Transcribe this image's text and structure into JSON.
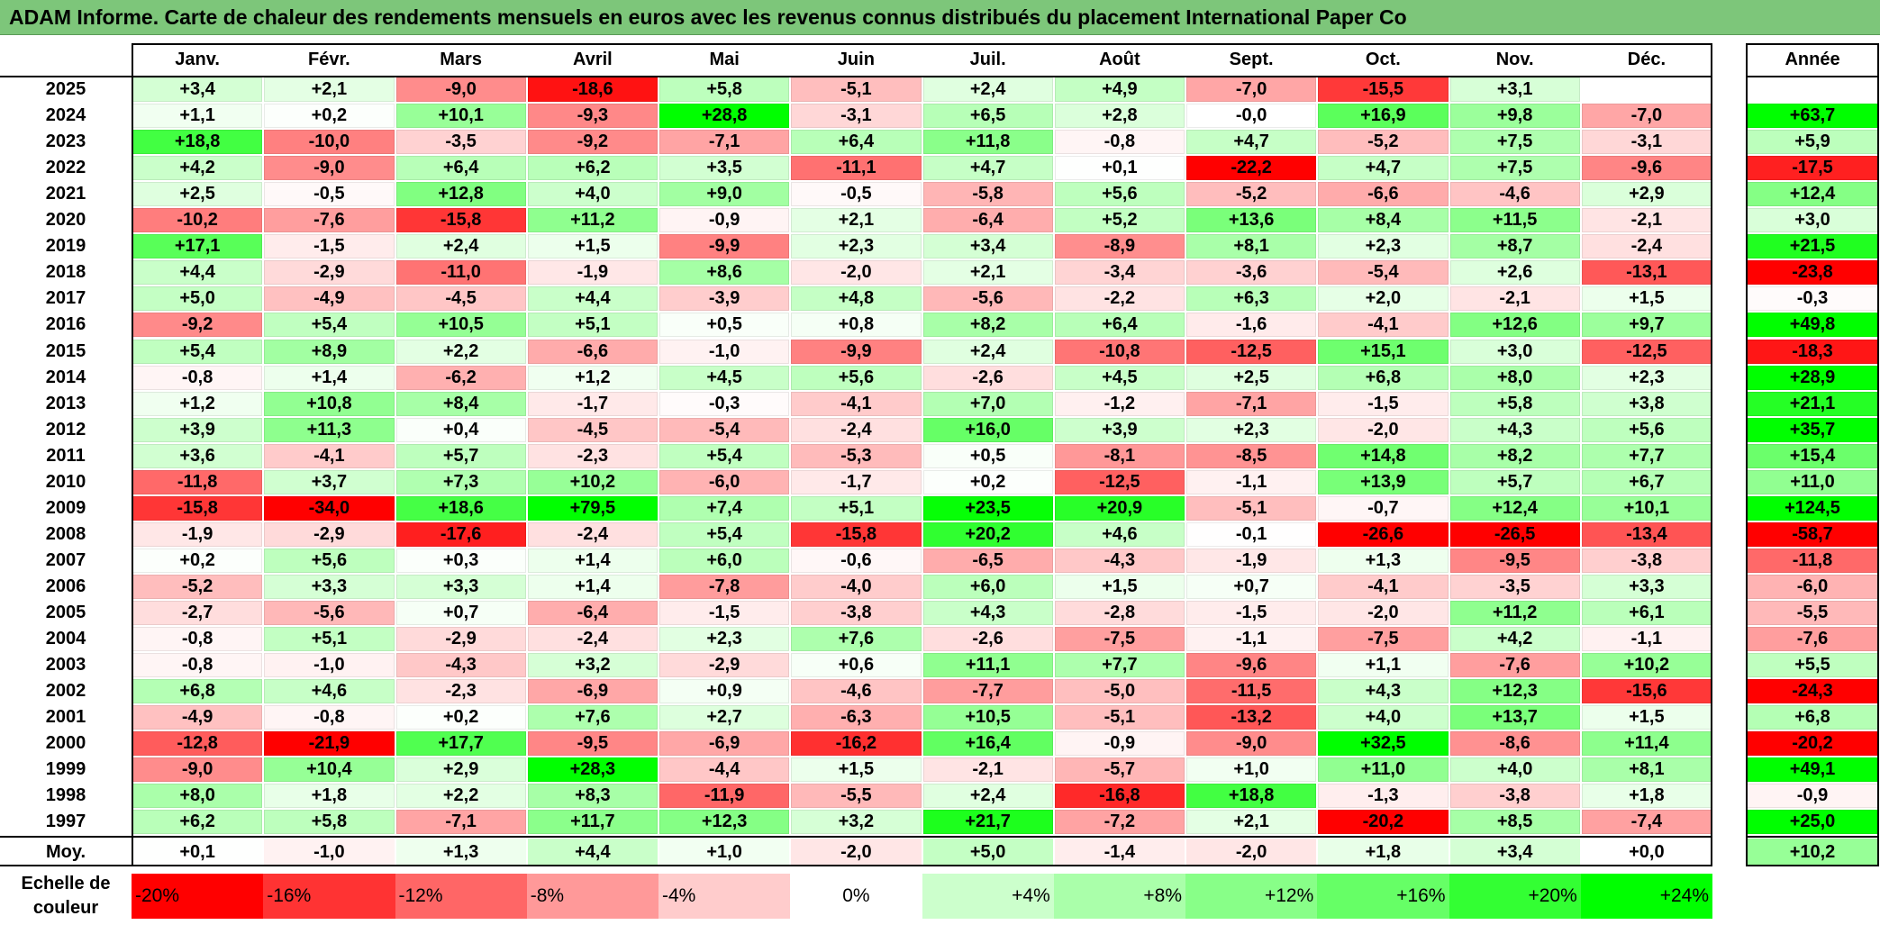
{
  "title": "ADAM Informe. Carte de chaleur des rendements mensuels en euros avec les revenus connus distribués du placement International Paper Co",
  "chart_data": {
    "type": "heatmap",
    "title": "ADAM Informe. Carte de chaleur des rendements mensuels en euros avec les revenus connus distribués du placement International Paper Co",
    "months": [
      "Janv.",
      "Févr.",
      "Mars",
      "Avril",
      "Mai",
      "Juin",
      "Juil.",
      "Août",
      "Sept.",
      "Oct.",
      "Nov.",
      "Déc."
    ],
    "year_header": "Année",
    "rows": [
      {
        "year": "2025",
        "values": [
          "+3,4",
          "+2,1",
          "-9,0",
          "-18,6",
          "+5,8",
          "-5,1",
          "+2,4",
          "+4,9",
          "-7,0",
          "-15,5",
          "+3,1",
          ""
        ],
        "annual": ""
      },
      {
        "year": "2024",
        "values": [
          "+1,1",
          "+0,2",
          "+10,1",
          "-9,3",
          "+28,8",
          "-3,1",
          "+6,5",
          "+2,8",
          "-0,0",
          "+16,9",
          "+9,8",
          "-7,0"
        ],
        "annual": "+63,7"
      },
      {
        "year": "2023",
        "values": [
          "+18,8",
          "-10,0",
          "-3,5",
          "-9,2",
          "-7,1",
          "+6,4",
          "+11,8",
          "-0,8",
          "+4,7",
          "-5,2",
          "+7,5",
          "-3,1"
        ],
        "annual": "+5,9"
      },
      {
        "year": "2022",
        "values": [
          "+4,2",
          "-9,0",
          "+6,4",
          "+6,2",
          "+3,5",
          "-11,1",
          "+4,7",
          "+0,1",
          "-22,2",
          "+4,7",
          "+7,5",
          "-9,6"
        ],
        "annual": "-17,5"
      },
      {
        "year": "2021",
        "values": [
          "+2,5",
          "-0,5",
          "+12,8",
          "+4,0",
          "+9,0",
          "-0,5",
          "-5,8",
          "+5,6",
          "-5,2",
          "-6,6",
          "-4,6",
          "+2,9"
        ],
        "annual": "+12,4"
      },
      {
        "year": "2020",
        "values": [
          "-10,2",
          "-7,6",
          "-15,8",
          "+11,2",
          "-0,9",
          "+2,1",
          "-6,4",
          "+5,2",
          "+13,6",
          "+8,4",
          "+11,5",
          "-2,1"
        ],
        "annual": "+3,0"
      },
      {
        "year": "2019",
        "values": [
          "+17,1",
          "-1,5",
          "+2,4",
          "+1,5",
          "-9,9",
          "+2,3",
          "+3,4",
          "-8,9",
          "+8,1",
          "+2,3",
          "+8,7",
          "-2,4"
        ],
        "annual": "+21,5"
      },
      {
        "year": "2018",
        "values": [
          "+4,4",
          "-2,9",
          "-11,0",
          "-1,9",
          "+8,6",
          "-2,0",
          "+2,1",
          "-3,4",
          "-3,6",
          "-5,4",
          "+2,6",
          "-13,1"
        ],
        "annual": "-23,8"
      },
      {
        "year": "2017",
        "values": [
          "+5,0",
          "-4,9",
          "-4,5",
          "+4,4",
          "-3,9",
          "+4,8",
          "-5,6",
          "-2,2",
          "+6,3",
          "+2,0",
          "-2,1",
          "+1,5"
        ],
        "annual": "-0,3"
      },
      {
        "year": "2016",
        "values": [
          "-9,2",
          "+5,4",
          "+10,5",
          "+5,1",
          "+0,5",
          "+0,8",
          "+8,2",
          "+6,4",
          "-1,6",
          "-4,1",
          "+12,6",
          "+9,7"
        ],
        "annual": "+49,8"
      },
      {
        "year": "2015",
        "values": [
          "+5,4",
          "+8,9",
          "+2,2",
          "-6,6",
          "-1,0",
          "-9,9",
          "+2,4",
          "-10,8",
          "-12,5",
          "+15,1",
          "+3,0",
          "-12,5"
        ],
        "annual": "-18,3"
      },
      {
        "year": "2014",
        "values": [
          "-0,8",
          "+1,4",
          "-6,2",
          "+1,2",
          "+4,5",
          "+5,6",
          "-2,6",
          "+4,5",
          "+2,5",
          "+6,8",
          "+8,0",
          "+2,3"
        ],
        "annual": "+28,9"
      },
      {
        "year": "2013",
        "values": [
          "+1,2",
          "+10,8",
          "+8,4",
          "-1,7",
          "-0,3",
          "-4,1",
          "+7,0",
          "-1,2",
          "-7,1",
          "-1,5",
          "+5,8",
          "+3,8"
        ],
        "annual": "+21,1"
      },
      {
        "year": "2012",
        "values": [
          "+3,9",
          "+11,3",
          "+0,4",
          "-4,5",
          "-5,4",
          "-2,4",
          "+16,0",
          "+3,9",
          "+2,3",
          "-2,0",
          "+4,3",
          "+5,6"
        ],
        "annual": "+35,7"
      },
      {
        "year": "2011",
        "values": [
          "+3,6",
          "-4,1",
          "+5,7",
          "-2,3",
          "+5,4",
          "-5,3",
          "+0,5",
          "-8,1",
          "-8,5",
          "+14,8",
          "+8,2",
          "+7,7"
        ],
        "annual": "+15,4"
      },
      {
        "year": "2010",
        "values": [
          "-11,8",
          "+3,7",
          "+7,3",
          "+10,2",
          "-6,0",
          "-1,7",
          "+0,2",
          "-12,5",
          "-1,1",
          "+13,9",
          "+5,7",
          "+6,7"
        ],
        "annual": "+11,0"
      },
      {
        "year": "2009",
        "values": [
          "-15,8",
          "-34,0",
          "+18,6",
          "+79,5",
          "+7,4",
          "+5,1",
          "+23,5",
          "+20,9",
          "-5,1",
          "-0,7",
          "+12,4",
          "+10,1"
        ],
        "annual": "+124,5"
      },
      {
        "year": "2008",
        "values": [
          "-1,9",
          "-2,9",
          "-17,6",
          "-2,4",
          "+5,4",
          "-15,8",
          "+20,2",
          "+4,6",
          "-0,1",
          "-26,6",
          "-26,5",
          "-13,4"
        ],
        "annual": "-58,7"
      },
      {
        "year": "2007",
        "values": [
          "+0,2",
          "+5,6",
          "+0,3",
          "+1,4",
          "+6,0",
          "-0,6",
          "-6,5",
          "-4,3",
          "-1,9",
          "+1,3",
          "-9,5",
          "-3,8"
        ],
        "annual": "-11,8"
      },
      {
        "year": "2006",
        "values": [
          "-5,2",
          "+3,3",
          "+3,3",
          "+1,4",
          "-7,8",
          "-4,0",
          "+6,0",
          "+1,5",
          "+0,7",
          "-4,1",
          "-3,5",
          "+3,3"
        ],
        "annual": "-6,0"
      },
      {
        "year": "2005",
        "values": [
          "-2,7",
          "-5,6",
          "+0,7",
          "-6,4",
          "-1,5",
          "-3,8",
          "+4,3",
          "-2,8",
          "-1,5",
          "-2,0",
          "+11,2",
          "+6,1"
        ],
        "annual": "-5,5"
      },
      {
        "year": "2004",
        "values": [
          "-0,8",
          "+5,1",
          "-2,9",
          "-2,4",
          "+2,3",
          "+7,6",
          "-2,6",
          "-7,5",
          "-1,1",
          "-7,5",
          "+4,2",
          "-1,1"
        ],
        "annual": "-7,6"
      },
      {
        "year": "2003",
        "values": [
          "-0,8",
          "-1,0",
          "-4,3",
          "+3,2",
          "-2,9",
          "+0,6",
          "+11,1",
          "+7,7",
          "-9,6",
          "+1,1",
          "-7,6",
          "+10,2"
        ],
        "annual": "+5,5"
      },
      {
        "year": "2002",
        "values": [
          "+6,8",
          "+4,6",
          "-2,3",
          "-6,9",
          "+0,9",
          "-4,6",
          "-7,7",
          "-5,0",
          "-11,5",
          "+4,3",
          "+12,3",
          "-15,6"
        ],
        "annual": "-24,3"
      },
      {
        "year": "2001",
        "values": [
          "-4,9",
          "-0,8",
          "+0,2",
          "+7,6",
          "+2,7",
          "-6,3",
          "+10,5",
          "-5,1",
          "-13,2",
          "+4,0",
          "+13,7",
          "+1,5"
        ],
        "annual": "+6,8"
      },
      {
        "year": "2000",
        "values": [
          "-12,8",
          "-21,9",
          "+17,7",
          "-9,5",
          "-6,9",
          "-16,2",
          "+16,4",
          "-0,9",
          "-9,0",
          "+32,5",
          "-8,6",
          "+11,4"
        ],
        "annual": "-20,2"
      },
      {
        "year": "1999",
        "values": [
          "-9,0",
          "+10,4",
          "+2,9",
          "+28,3",
          "-4,4",
          "+1,5",
          "-2,1",
          "-5,7",
          "+1,0",
          "+11,0",
          "+4,0",
          "+8,1"
        ],
        "annual": "+49,1"
      },
      {
        "year": "1998",
        "values": [
          "+8,0",
          "+1,8",
          "+2,2",
          "+8,3",
          "-11,9",
          "-5,5",
          "+2,4",
          "-16,8",
          "+18,8",
          "-1,3",
          "-3,8",
          "+1,8"
        ],
        "annual": "-0,9"
      },
      {
        "year": "1997",
        "values": [
          "+6,2",
          "+5,8",
          "-7,1",
          "+11,7",
          "+12,3",
          "+3,2",
          "+21,7",
          "-7,2",
          "+2,1",
          "-20,2",
          "+8,5",
          "-7,4"
        ],
        "annual": "+25,0"
      }
    ],
    "average": {
      "label": "Moy.",
      "values": [
        "+0,1",
        "-1,0",
        "+1,3",
        "+4,4",
        "+1,0",
        "-2,0",
        "+5,0",
        "-1,4",
        "-2,0",
        "+1,8",
        "+3,4",
        "+0,0"
      ],
      "annual": "+10,2"
    },
    "color_scale": {
      "label_line1": "Echelle de",
      "label_line2": "couleur",
      "steps": [
        {
          "label": "-20%",
          "value": -20,
          "color": "#ff0000"
        },
        {
          "label": "-16%",
          "value": -16,
          "color": "#ff3333"
        },
        {
          "label": "-12%",
          "value": -12,
          "color": "#ff6666"
        },
        {
          "label": "-8%",
          "value": -8,
          "color": "#ff9999"
        },
        {
          "label": "-4%",
          "value": -4,
          "color": "#ffcccc"
        },
        {
          "label": "0%",
          "value": 0,
          "color": "#ffffff"
        },
        {
          "label": "+4%",
          "value": 4,
          "color": "#ccffcc"
        },
        {
          "label": "+8%",
          "value": 8,
          "color": "#aaffaa"
        },
        {
          "label": "+12%",
          "value": 12,
          "color": "#88ff88"
        },
        {
          "label": "+16%",
          "value": 16,
          "color": "#66ff66"
        },
        {
          "label": "+20%",
          "value": 20,
          "color": "#33ff33"
        },
        {
          "label": "+24%",
          "value": 24,
          "color": "#00ff00"
        }
      ]
    },
    "colors": {
      "title_bar": "#7dc67a",
      "negative_max": "#ff0000",
      "neutral": "#ffffff",
      "positive_max": "#00ff00"
    }
  }
}
